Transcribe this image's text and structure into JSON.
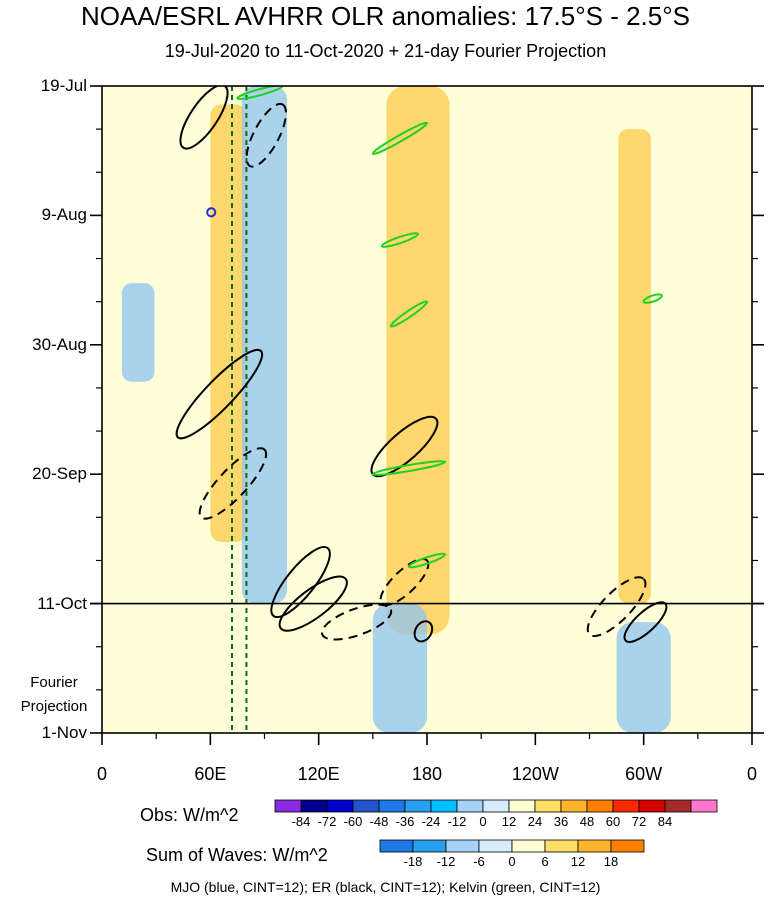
{
  "title": "NOAA/ESRL AVHRR OLR anomalies: 17.5°S - 2.5°S",
  "subtitle": "19-Jul-2020 to 11-Oct-2020 + 21-day Fourier Projection",
  "fourier_label": [
    "Fourier",
    "Projection"
  ],
  "footer": "MJO (blue, CINT=12); ER (black, CINT=12); Kelvin (green, CINT=12)",
  "colorbar_obs": {
    "title": "Obs: W/m^2",
    "ticks": [
      "-84",
      "-72",
      "-60",
      "-48",
      "-36",
      "-24",
      "-12",
      "0",
      "12",
      "24",
      "36",
      "48",
      "60",
      "72",
      "84"
    ],
    "colors": [
      "#8a2be2",
      "#00008b",
      "#0000cd",
      "#2255cc",
      "#1e78e6",
      "#28a0f0",
      "#00bfff",
      "#a6d0f5",
      "#d7ecfa",
      "#ffffd4",
      "#ffe066",
      "#ffb42c",
      "#ff7f00",
      "#ff2a00",
      "#d40000",
      "#a52a2a",
      "#ff77cc"
    ]
  },
  "colorbar_waves": {
    "title": "Sum of Waves: W/m^2",
    "ticks": [
      "-18",
      "-12",
      "-6",
      "0",
      "6",
      "12",
      "18"
    ],
    "colors": [
      "#1e78e6",
      "#28a0f0",
      "#a6d0f5",
      "#d7ecfa",
      "#ffffd4",
      "#ffe066",
      "#ffb42c",
      "#ff7f00"
    ]
  },
  "chart_data": {
    "type": "heatmap",
    "title": "NOAA/ESRL AVHRR OLR anomalies: 17.5°S - 2.5°S",
    "x_tick_labels": [
      "0",
      "60E",
      "120E",
      "180",
      "120W",
      "60W",
      "0"
    ],
    "x_range_deg_east": [
      0,
      360
    ],
    "y_tick_labels": [
      "19-Jul",
      "9-Aug",
      "30-Aug",
      "20-Sep",
      "11-Oct",
      "1-Nov"
    ],
    "y_range": [
      "2020-07-19",
      "2020-11-01"
    ],
    "observation_end": "2020-10-11",
    "projection_days": 21,
    "vertical_reference_lines_deg_east": [
      72,
      80
    ],
    "units": "W/m^2",
    "contour_interval": 12,
    "anomaly_features": [
      {
        "sign": "positive",
        "lon_center": 70,
        "lon_width": 20,
        "date_start": "2020-07-22",
        "date_end": "2020-10-01"
      },
      {
        "sign": "positive",
        "lon_center": 175,
        "lon_width": 35,
        "date_start": "2020-07-19",
        "date_end": "2020-10-16"
      },
      {
        "sign": "positive",
        "lon_center": 295,
        "lon_width": 18,
        "date_start": "2020-07-26",
        "date_end": "2020-10-11"
      },
      {
        "sign": "negative",
        "lon_center": 20,
        "lon_width": 18,
        "date_start": "2020-08-20",
        "date_end": "2020-09-05"
      },
      {
        "sign": "negative",
        "lon_center": 90,
        "lon_width": 25,
        "date_start": "2020-07-19",
        "date_end": "2020-10-11"
      },
      {
        "sign": "negative",
        "lon_center": 165,
        "lon_width": 30,
        "date_start": "2020-10-11",
        "date_end": "2020-11-01"
      },
      {
        "sign": "negative",
        "lon_center": 300,
        "lon_width": 30,
        "date_start": "2020-10-14",
        "date_end": "2020-11-01"
      }
    ],
    "wave_contours": [
      {
        "wave": "ER",
        "sign": "negative",
        "lon_start": 45,
        "lon_end": 68,
        "date_start": "2020-07-19",
        "date_end": "2020-07-29"
      },
      {
        "wave": "ER",
        "sign": "positive",
        "lon_start": 82,
        "lon_end": 100,
        "date_start": "2020-07-22",
        "date_end": "2020-08-01"
      },
      {
        "wave": "ER",
        "sign": "negative",
        "lon_start": 42,
        "lon_end": 88,
        "date_start": "2020-08-31",
        "date_end": "2020-09-14"
      },
      {
        "wave": "ER",
        "sign": "positive",
        "lon_start": 55,
        "lon_end": 90,
        "date_start": "2020-09-16",
        "date_end": "2020-09-27"
      },
      {
        "wave": "ER",
        "sign": "negative",
        "lon_start": 95,
        "lon_end": 125,
        "date_start": "2020-10-02",
        "date_end": "2020-10-13"
      },
      {
        "wave": "ER",
        "sign": "negative",
        "lon_start": 150,
        "lon_end": 185,
        "date_start": "2020-09-11",
        "date_end": "2020-09-20"
      },
      {
        "wave": "ER",
        "sign": "positive",
        "lon_start": 155,
        "lon_end": 180,
        "date_start": "2020-10-04",
        "date_end": "2020-10-11"
      },
      {
        "wave": "ER",
        "sign": "positive",
        "lon_start": 122,
        "lon_end": 160,
        "date_start": "2020-10-12",
        "date_end": "2020-10-16"
      },
      {
        "wave": "ER",
        "sign": "negative",
        "lon_start": 99,
        "lon_end": 135,
        "date_start": "2020-10-07",
        "date_end": "2020-10-15"
      },
      {
        "wave": "ER",
        "sign": "negative",
        "lon_start": 175,
        "lon_end": 181,
        "date_start": "2020-10-14",
        "date_end": "2020-10-17"
      },
      {
        "wave": "ER",
        "sign": "positive",
        "lon_start": 270,
        "lon_end": 300,
        "date_start": "2020-10-07",
        "date_end": "2020-10-16"
      },
      {
        "wave": "ER",
        "sign": "negative",
        "lon_start": 290,
        "lon_end": 312,
        "date_start": "2020-10-11",
        "date_end": "2020-10-17"
      },
      {
        "wave": "MJO",
        "sign": "negative",
        "lon_start": 59,
        "lon_end": 62,
        "date_start": "2020-08-08",
        "date_end": "2020-08-09"
      },
      {
        "wave": "Kelvin",
        "sign": "negative",
        "lon_start": 75,
        "lon_end": 100,
        "date_start": "2020-07-19",
        "date_end": "2020-07-21"
      },
      {
        "wave": "Kelvin",
        "sign": "negative",
        "lon_start": 150,
        "lon_end": 180,
        "date_start": "2020-07-25",
        "date_end": "2020-07-30"
      },
      {
        "wave": "Kelvin",
        "sign": "negative",
        "lon_start": 155,
        "lon_end": 175,
        "date_start": "2020-08-12",
        "date_end": "2020-08-14"
      },
      {
        "wave": "Kelvin",
        "sign": "negative",
        "lon_start": 160,
        "lon_end": 180,
        "date_start": "2020-08-23",
        "date_end": "2020-08-27"
      },
      {
        "wave": "Kelvin",
        "sign": "negative",
        "lon_start": 150,
        "lon_end": 190,
        "date_start": "2020-09-18",
        "date_end": "2020-09-20"
      },
      {
        "wave": "Kelvin",
        "sign": "negative",
        "lon_start": 170,
        "lon_end": 190,
        "date_start": "2020-10-03",
        "date_end": "2020-10-05"
      },
      {
        "wave": "Kelvin",
        "sign": "negative",
        "lon_start": 300,
        "lon_end": 310,
        "date_start": "2020-08-22",
        "date_end": "2020-08-23"
      }
    ]
  }
}
